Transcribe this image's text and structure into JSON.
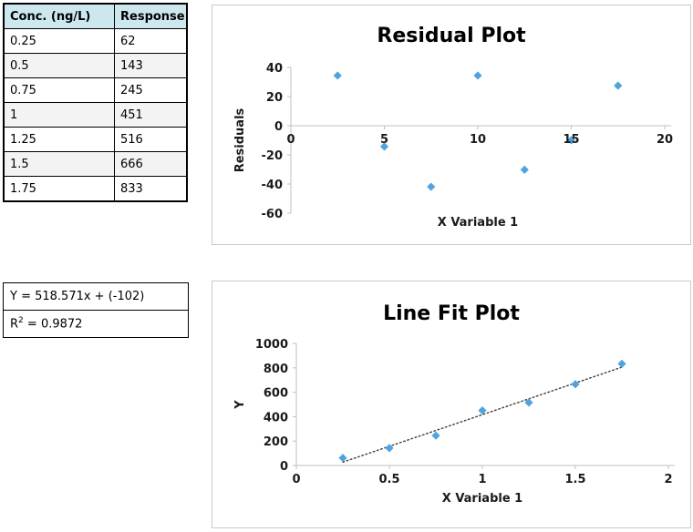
{
  "table": {
    "headers": [
      "Conc. (ng/L)",
      "Response"
    ],
    "rows": [
      [
        "0.25",
        "62"
      ],
      [
        "0.5",
        "143"
      ],
      [
        "0.75",
        "245"
      ],
      [
        "1",
        "451"
      ],
      [
        "1.25",
        "516"
      ],
      [
        "1.5",
        "666"
      ],
      [
        "1.75",
        "833"
      ]
    ],
    "header_bg": "#cde7ef"
  },
  "equation_box": {
    "equation": "Y = 518.571x + (-102)",
    "r_label": "R",
    "r_exponent": "2",
    "r_value": " = 0.9872"
  },
  "colors": {
    "marker_blue": "#4FA3DF",
    "axis_gray": "#bfbfbf",
    "panel_border": "#c9c9c9",
    "trendline": "#3f3f3f"
  },
  "chart_data": [
    {
      "type": "scatter",
      "title": "Residual Plot",
      "xlabel": "X Variable 1",
      "ylabel": "Residuals",
      "xlim": [
        0,
        20
      ],
      "ylim": [
        -60,
        40
      ],
      "xticks": [
        0,
        5,
        10,
        15,
        20
      ],
      "xtick_labels": [
        "0",
        "5",
        "10",
        "15",
        "20"
      ],
      "yticks": [
        40,
        20,
        0,
        -20,
        -40,
        -60
      ],
      "ytick_labels": [
        "40",
        "20",
        "0",
        "-20",
        "-40",
        "-60"
      ],
      "grid": false,
      "legend": "none",
      "marker_color": "#4FA3DF",
      "points": [
        [
          2.5,
          34.4
        ],
        [
          5,
          -14.3
        ],
        [
          7.5,
          -41.9
        ],
        [
          10,
          34.4
        ],
        [
          12.5,
          -30.2
        ],
        [
          15,
          -9.9
        ],
        [
          17.5,
          27.5
        ]
      ]
    },
    {
      "type": "scatter",
      "title": "Line Fit  Plot",
      "xlabel": "X Variable 1",
      "ylabel": "Y",
      "xlim": [
        0,
        2
      ],
      "ylim": [
        0,
        1000
      ],
      "xticks": [
        0,
        0.5,
        1,
        1.5,
        2
      ],
      "xtick_labels": [
        "0",
        "0.5",
        "1",
        "1.5",
        "2"
      ],
      "yticks": [
        0,
        200,
        400,
        600,
        800,
        1000
      ],
      "ytick_labels": [
        "0",
        "200",
        "400",
        "600",
        "800",
        "1000"
      ],
      "grid": false,
      "legend": "none",
      "marker_color": "#4FA3DF",
      "points": [
        [
          0.25,
          62
        ],
        [
          0.5,
          143
        ],
        [
          0.75,
          245
        ],
        [
          1,
          451
        ],
        [
          1.25,
          516
        ],
        [
          1.5,
          666
        ],
        [
          1.75,
          833
        ]
      ],
      "trendline": {
        "style": "dotted",
        "color": "#3f3f3f",
        "x": [
          0.25,
          1.75
        ],
        "y": [
          27.6,
          805.5
        ]
      }
    }
  ]
}
